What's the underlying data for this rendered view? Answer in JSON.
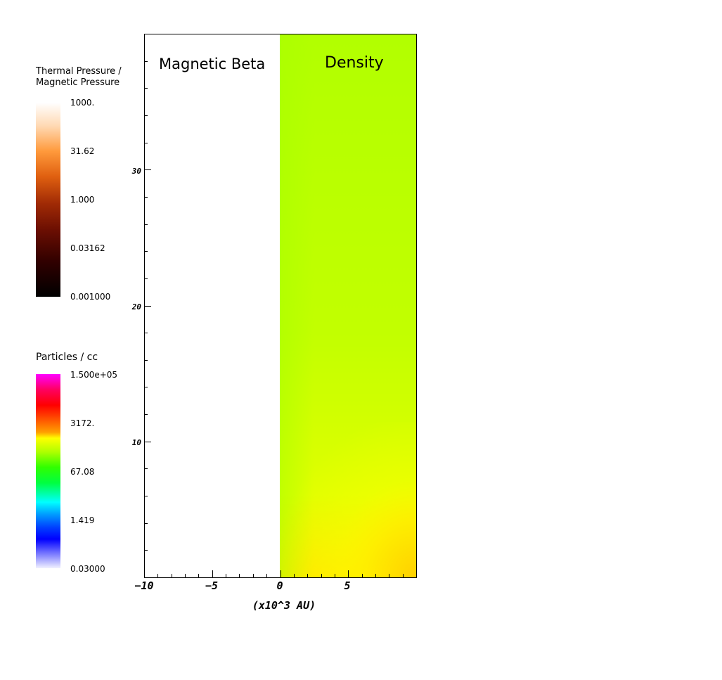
{
  "colorbars": [
    {
      "title": "Thermal Pressure /\nMagnetic Pressure",
      "labels": [
        "1000.",
        "31.62",
        "1.000",
        "0.03162",
        "0.001000"
      ]
    },
    {
      "title": "Particles / cc",
      "labels": [
        "1.500e+05",
        "3172.",
        "67.08",
        "1.419",
        "0.03000"
      ]
    }
  ],
  "panels": {
    "left_title": "Magnetic Beta",
    "right_title": "Density"
  },
  "colors": {
    "density_top": "#b3ff00",
    "density_mid": "#d4ff00",
    "density_bottom_right": "#ffd400",
    "density_yellow": "#ffff00"
  },
  "chart_data": {
    "type": "heatmap",
    "xlabel": "(x10^3 AU)",
    "ylabel": "",
    "x_ticks": [
      "−10",
      "−5",
      "0",
      "5"
    ],
    "x_tick_values": [
      -10,
      -5,
      0,
      5
    ],
    "y_ticks": [
      "10",
      "20",
      "30"
    ],
    "y_tick_values": [
      10,
      20,
      30
    ],
    "xlim": [
      -10,
      10
    ],
    "ylim": [
      0,
      40
    ],
    "left_half": "Magnetic Beta (uniform, saturated white)",
    "right_half": "Density (green-yellow, increasing toward bottom-right)"
  }
}
